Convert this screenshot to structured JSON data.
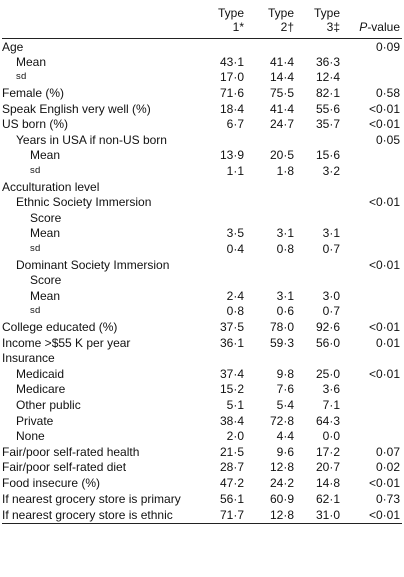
{
  "header": {
    "type1": "Type 1*",
    "type2": "Type 2†",
    "type3": "Type 3‡",
    "pvalue_italic": "P",
    "pvalue_rest": "-value"
  },
  "rows": [
    {
      "label": "Age",
      "indent": 0,
      "t1": "",
      "t2": "",
      "t3": "",
      "p": "0·09"
    },
    {
      "label": "Mean",
      "indent": 1,
      "t1": "43·1",
      "t2": "41·4",
      "t3": "36·3",
      "p": ""
    },
    {
      "label": "sd",
      "indent": 1,
      "sc": true,
      "t1": "17·0",
      "t2": "14·4",
      "t3": "12·4",
      "p": ""
    },
    {
      "label": "Female (%)",
      "indent": 0,
      "t1": "71·6",
      "t2": "75·5",
      "t3": "82·1",
      "p": "0·58"
    },
    {
      "label": "Speak English very well (%)",
      "indent": 0,
      "t1": "18·4",
      "t2": "41·4",
      "t3": "55·6",
      "p": "<0·01"
    },
    {
      "label": "US born (%)",
      "indent": 0,
      "t1": "6·7",
      "t2": "24·7",
      "t3": "35·7",
      "p": "<0·01"
    },
    {
      "label": "Years in USA if non-US born",
      "indent": 1,
      "t1": "",
      "t2": "",
      "t3": "",
      "p": "0·05"
    },
    {
      "label": "Mean",
      "indent": 2,
      "t1": "13·9",
      "t2": "20·5",
      "t3": "15·6",
      "p": ""
    },
    {
      "label": "sd",
      "indent": 2,
      "sc": true,
      "t1": "1·1",
      "t2": "1·8",
      "t3": "3·2",
      "p": ""
    },
    {
      "label": "Acculturation level",
      "indent": 0,
      "t1": "",
      "t2": "",
      "t3": "",
      "p": ""
    },
    {
      "label": "Ethnic Society Immersion",
      "indent": 1,
      "t1": "",
      "t2": "",
      "t3": "",
      "p": "<0·01"
    },
    {
      "label": "Score",
      "indent": 2,
      "t1": "",
      "t2": "",
      "t3": "",
      "p": ""
    },
    {
      "label": "Mean",
      "indent": 2,
      "t1": "3·5",
      "t2": "3·1",
      "t3": "3·1",
      "p": ""
    },
    {
      "label": "sd",
      "indent": 2,
      "sc": true,
      "t1": "0·4",
      "t2": "0·8",
      "t3": "0·7",
      "p": ""
    },
    {
      "label": "Dominant Society Immersion",
      "indent": 1,
      "t1": "",
      "t2": "",
      "t3": "",
      "p": "<0·01"
    },
    {
      "label": "Score",
      "indent": 2,
      "t1": "",
      "t2": "",
      "t3": "",
      "p": ""
    },
    {
      "label": "Mean",
      "indent": 2,
      "t1": "2·4",
      "t2": "3·1",
      "t3": "3·0",
      "p": ""
    },
    {
      "label": "sd",
      "indent": 2,
      "sc": true,
      "t1": "0·8",
      "t2": "0·6",
      "t3": "0·7",
      "p": ""
    },
    {
      "label": "College educated (%)",
      "indent": 0,
      "t1": "37·5",
      "t2": "78·0",
      "t3": "92·6",
      "p": "<0·01"
    },
    {
      "label": "Income >$55 K per year",
      "indent": 0,
      "t1": "36·1",
      "t2": "59·3",
      "t3": "56·0",
      "p": "0·01"
    },
    {
      "label": "Insurance",
      "indent": 0,
      "t1": "",
      "t2": "",
      "t3": "",
      "p": ""
    },
    {
      "label": "Medicaid",
      "indent": 1,
      "t1": "37·4",
      "t2": "9·8",
      "t3": "25·0",
      "p": "<0·01"
    },
    {
      "label": "Medicare",
      "indent": 1,
      "t1": "15·2",
      "t2": "7·6",
      "t3": "3·6",
      "p": ""
    },
    {
      "label": "Other public",
      "indent": 1,
      "t1": "5·1",
      "t2": "5·4",
      "t3": "7·1",
      "p": ""
    },
    {
      "label": "Private",
      "indent": 1,
      "t1": "38·4",
      "t2": "72·8",
      "t3": "64·3",
      "p": ""
    },
    {
      "label": "None",
      "indent": 1,
      "t1": "2·0",
      "t2": "4·4",
      "t3": "0·0",
      "p": ""
    },
    {
      "label": "Fair/poor self-rated health",
      "indent": 0,
      "t1": "21·5",
      "t2": "9·6",
      "t3": "17·2",
      "p": "0·07"
    },
    {
      "label": "Fair/poor self-rated diet",
      "indent": 0,
      "t1": "28·7",
      "t2": "12·8",
      "t3": "20·7",
      "p": "0·02"
    },
    {
      "label": "Food insecure (%)",
      "indent": 0,
      "t1": "47·2",
      "t2": "24·2",
      "t3": "14·8",
      "p": "<0·01"
    },
    {
      "label": "If nearest grocery store is primary",
      "indent": 0,
      "wrap": true,
      "t1": "56·1",
      "t2": "60·9",
      "t3": "62·1",
      "p": "0·73"
    },
    {
      "label": "If nearest grocery store is ethnic",
      "indent": 0,
      "wrap": true,
      "t1": "71·7",
      "t2": "12·8",
      "t3": "31·0",
      "p": "<0·01"
    }
  ]
}
